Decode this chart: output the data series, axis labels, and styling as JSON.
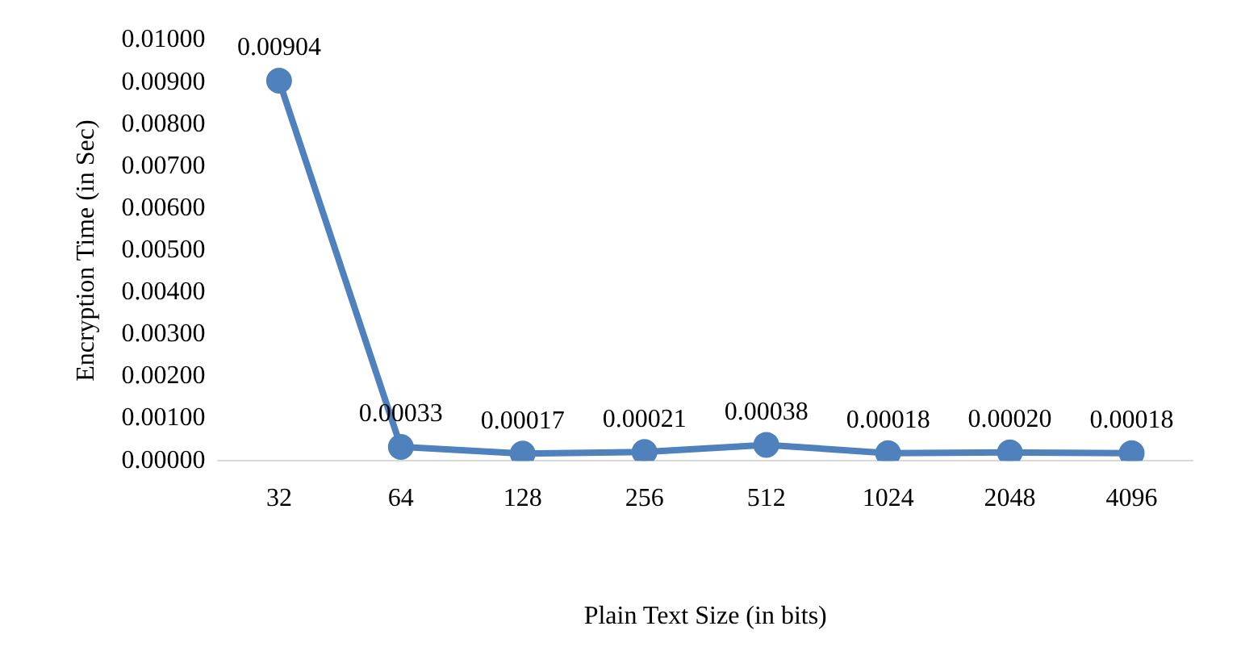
{
  "chart_data": {
    "type": "line",
    "xlabel": "Plain Text Size (in bits)",
    "ylabel": "Encryption Time (in Sec)",
    "categories": [
      "32",
      "64",
      "128",
      "256",
      "512",
      "1024",
      "2048",
      "4096"
    ],
    "series": [
      {
        "color": "#4f81bd",
        "values": [
          0.00904,
          0.00033,
          0.00017,
          0.00021,
          0.00038,
          0.00018,
          0.0002,
          0.00018
        ],
        "value_labels": [
          "0.00904",
          "0.00033",
          "0.00017",
          "0.00021",
          "0.00038",
          "0.00018",
          "0.00020",
          "0.00018"
        ]
      }
    ],
    "ylim": [
      0,
      0.01
    ],
    "yticks": [
      {
        "value": 0,
        "label": "0.00000"
      },
      {
        "value": 0.001,
        "label": "0.00100"
      },
      {
        "value": 0.002,
        "label": "0.00200"
      },
      {
        "value": 0.003,
        "label": "0.00300"
      },
      {
        "value": 0.004,
        "label": "0.00400"
      },
      {
        "value": 0.005,
        "label": "0.00500"
      },
      {
        "value": 0.006,
        "label": "0.00600"
      },
      {
        "value": 0.007,
        "label": "0.00700"
      },
      {
        "value": 0.008,
        "label": "0.00800"
      },
      {
        "value": 0.009,
        "label": "0.00900"
      },
      {
        "value": 0.01,
        "label": "0.01000"
      }
    ],
    "grid": false,
    "legend": false,
    "marker": "circle",
    "line_style": "solid"
  }
}
